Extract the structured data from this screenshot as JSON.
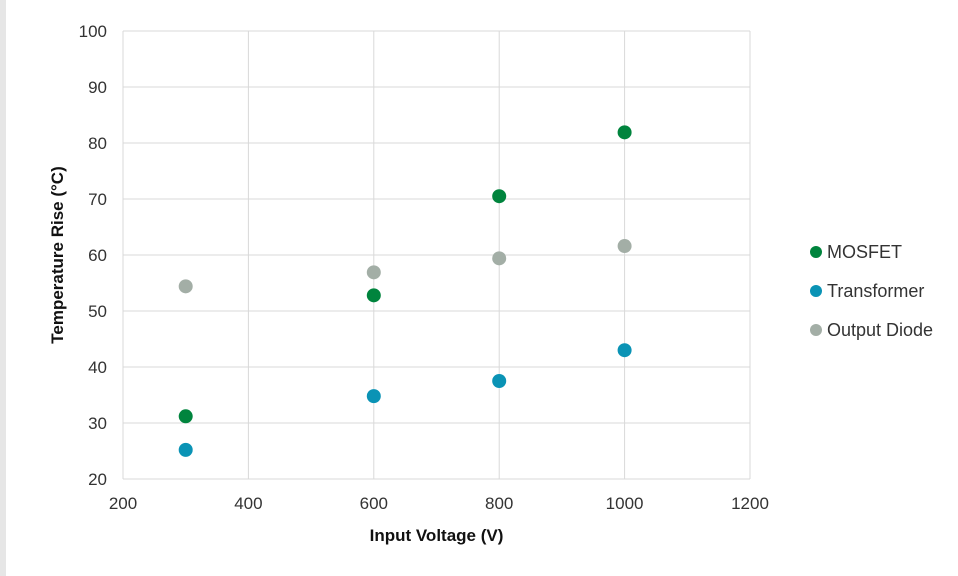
{
  "chart_data": {
    "type": "scatter",
    "title": "",
    "xlabel": "Input Voltage (V)",
    "ylabel": "Temperature Rise (°C)",
    "xlim": [
      200,
      1200
    ],
    "ylim": [
      20,
      100
    ],
    "xticks": [
      "200",
      "400",
      "600",
      "800",
      "1000",
      "1200"
    ],
    "yticks": [
      "20",
      "30",
      "40",
      "50",
      "60",
      "70",
      "80",
      "90",
      "100"
    ],
    "grid": true,
    "legend_position": "right",
    "series": [
      {
        "name": "MOSFET",
        "color": "#00843d",
        "x": [
          300,
          600,
          800,
          1000
        ],
        "y": [
          31.2,
          52.8,
          70.5,
          81.9
        ]
      },
      {
        "name": "Transformer",
        "color": "#0a93b5",
        "x": [
          300,
          600,
          800,
          1000
        ],
        "y": [
          25.2,
          34.8,
          37.5,
          43.0
        ]
      },
      {
        "name": "Output Diode",
        "color": "#a3aea6",
        "x": [
          300,
          600,
          800,
          1000
        ],
        "y": [
          54.4,
          56.9,
          59.4,
          61.6
        ]
      }
    ]
  }
}
